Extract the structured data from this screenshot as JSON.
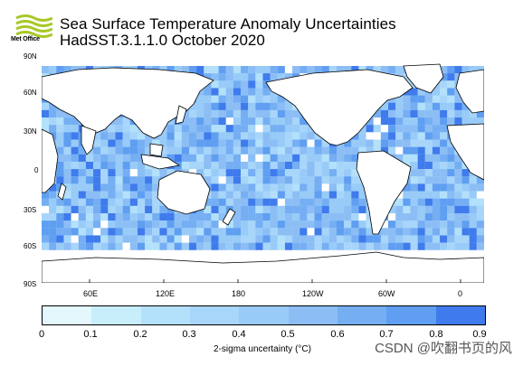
{
  "header": {
    "logo_text": "Met Office",
    "title": "Sea Surface Temperature Anomaly Uncertainties",
    "subtitle": "HadSST.3.1.1.0 October 2020"
  },
  "map": {
    "lat_labels": [
      "90N",
      "60N",
      "30N",
      "0",
      "30S",
      "60S",
      "90S"
    ],
    "lon_labels": [
      "60E",
      "120E",
      "180",
      "120W",
      "60W",
      "0"
    ],
    "land_color": "#ffffff",
    "coast_color": "#000000"
  },
  "colorbar": {
    "title": "2-sigma uncertainty (°C)",
    "ticks": [
      "0",
      "0.1",
      "0.2",
      "0.3",
      "0.4",
      "0.5",
      "0.6",
      "0.7",
      "0.8",
      "0.9"
    ],
    "colors": [
      "#e3f7fc",
      "#c8eefb",
      "#b3e1fb",
      "#a8d5fa",
      "#99cbf8",
      "#8cbef5",
      "#75aef3",
      "#5f9ef0",
      "#3f7bec"
    ]
  },
  "watermark": "CSDN @吹翻书页的风"
}
